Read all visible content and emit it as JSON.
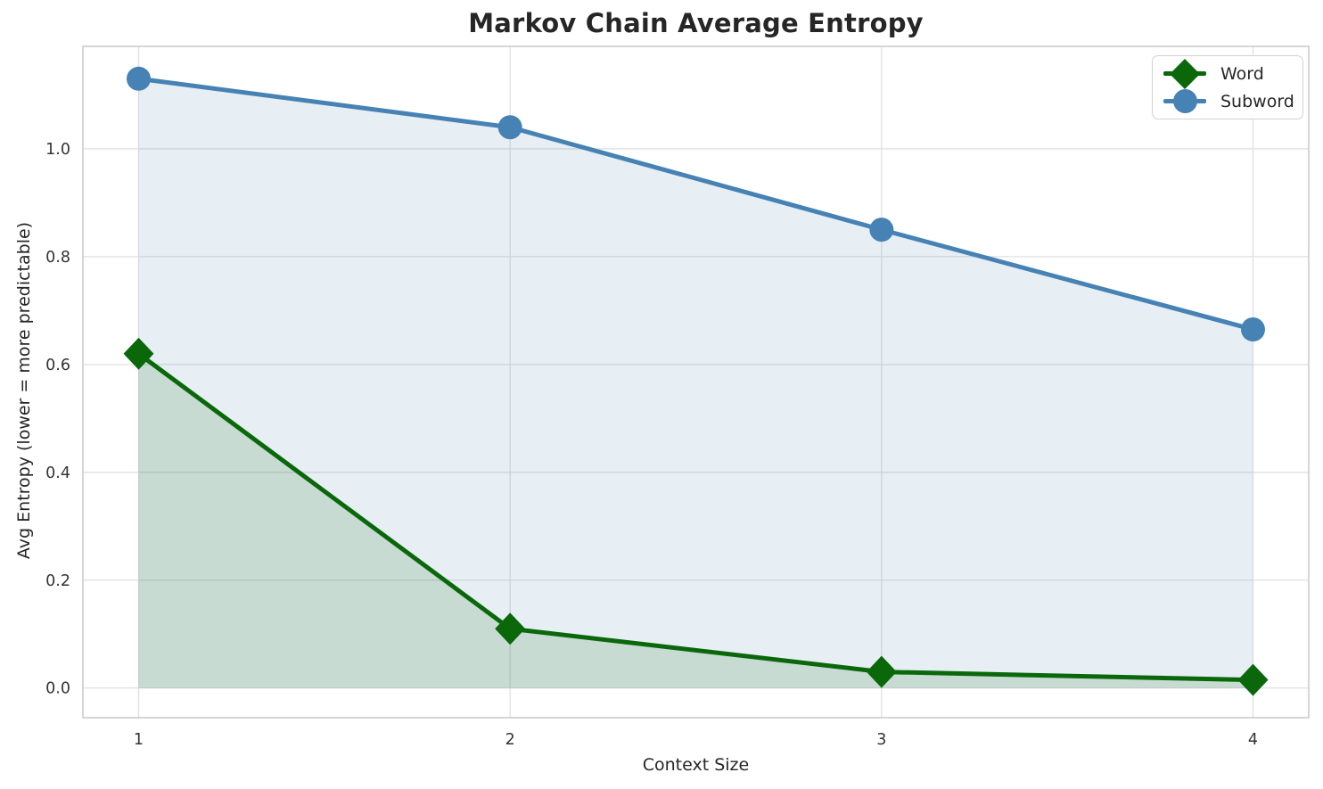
{
  "chart_data": {
    "type": "line",
    "title": "Markov Chain Average Entropy",
    "xlabel": "Context Size",
    "ylabel": "Avg Entropy (lower = more predictable)",
    "x": [
      1,
      2,
      3,
      4
    ],
    "series": [
      {
        "name": "Word",
        "values": [
          0.62,
          0.11,
          0.03,
          0.015
        ],
        "color": "#0a680b",
        "marker": "diamond",
        "fill_color": "rgba(10,100,10,0.14)",
        "fill_to_zero": true
      },
      {
        "name": "Subword",
        "values": [
          1.13,
          1.04,
          0.85,
          0.665
        ],
        "color": "#4682b4",
        "marker": "circle",
        "fill_color": "rgba(70,130,180,0.13)",
        "fill_to_zero": true
      }
    ],
    "xticks": [
      1,
      2,
      3,
      4
    ],
    "xtick_labels": [
      "1",
      "2",
      "3",
      "4"
    ],
    "yticks": [
      0.0,
      0.2,
      0.4,
      0.6,
      0.8,
      1.0
    ],
    "ytick_labels": [
      "0.0",
      "0.2",
      "0.4",
      "0.6",
      "0.8",
      "1.0"
    ],
    "xlim": [
      0.85,
      4.15
    ],
    "ylim": [
      -0.055,
      1.19
    ],
    "grid": true,
    "legend_position": "upper right",
    "style": {
      "grid_color": "#e0e0e0",
      "spine_color": "#c9c9c9",
      "tick_text_color": "#333333",
      "title_color": "#262626",
      "background": "#ffffff",
      "line_width": 5
    }
  }
}
